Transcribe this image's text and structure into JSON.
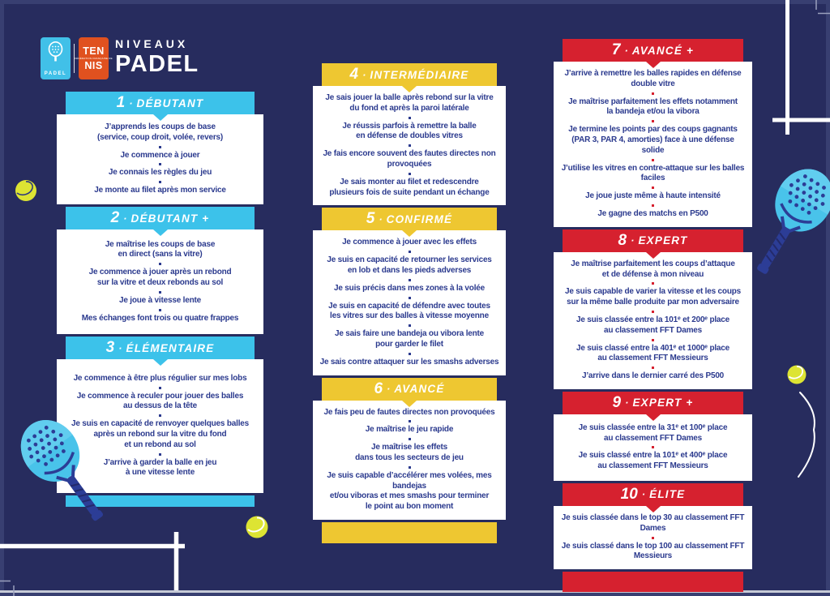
{
  "brand": {
    "padel_logo_label": "PADEL",
    "tennis_logo": {
      "top": "TEN",
      "middle": "FÉDÉRATION FRANÇAISE DE",
      "bottom": "NIS"
    },
    "title_line1": "NIVEAUX",
    "title_line2": "PADEL"
  },
  "level_separator": "·",
  "colors": {
    "background": "#272c5e",
    "cyan": "#3cc2ea",
    "yellow": "#eec731",
    "red": "#d6212f",
    "body_text": "#2b3a8e",
    "ball_yellow": "#dde433",
    "racket_blue": "#49c3ea",
    "court_line_white": "#ffffff"
  },
  "columns": [
    {
      "accent": "#3cc2ea",
      "separator_dot_color": "#2b3a8e",
      "cards": [
        {
          "number": "1",
          "name": "DÉBUTANT",
          "items": [
            "J’apprends les coups de base\n(service, coup droit, volée, revers)",
            "Je commence à jouer",
            "Je connais les règles du jeu",
            "Je monte au filet après mon service"
          ]
        },
        {
          "number": "2",
          "name": "DÉBUTANT +",
          "items": [
            "Je maîtrise les coups de base\nen direct (sans la vitre)",
            "Je commence à jouer après un rebond\nsur la vitre et deux rebonds au sol",
            "Je joue à vitesse lente",
            "Mes échanges font trois ou quatre frappes"
          ]
        },
        {
          "number": "3",
          "name": "ÉLÉMENTAIRE",
          "items": [
            "Je commence à être plus régulier sur mes lobs",
            "Je commence à reculer pour jouer des balles\nau dessus de la tête",
            "Je suis en capacité de renvoyer quelques balles\naprès un rebond sur la vitre du fond\net un rebond au sol",
            "J’arrive à garder la balle en jeu\nà une vitesse lente"
          ]
        }
      ]
    },
    {
      "accent": "#eec731",
      "separator_dot_color": "#2b3a8e",
      "cards": [
        {
          "number": "4",
          "name": "INTERMÉDIAIRE",
          "items": [
            "Je sais jouer la balle après rebond sur la vitre\ndu fond et après la paroi latérale",
            "Je réussis parfois à remettre la balle\nen défense de doubles vitres",
            "Je fais encore souvent des fautes directes non provoquées",
            "Je sais monter au filet et redescendre\nplusieurs fois de suite pendant un échange"
          ]
        },
        {
          "number": "5",
          "name": "CONFIRMÉ",
          "items": [
            "Je commence à jouer avec les effets",
            "Je suis en capacité de retourner les services\nen lob et dans les pieds adverses",
            "Je suis précis dans mes zones à la volée",
            "Je suis en capacité de défendre avec toutes\nles vitres sur des balles à vitesse moyenne",
            "Je sais faire une bandeja ou vibora lente\npour garder le filet",
            "Je sais contre attaquer sur les smashs adverses"
          ]
        },
        {
          "number": "6",
          "name": "AVANCÉ",
          "items": [
            "Je fais peu de fautes directes non provoquées",
            "Je maîtrise le jeu rapide",
            "Je maîtrise les effets\ndans tous les secteurs de jeu",
            "Je suis capable d’accélérer mes volées, mes bandejas\net/ou viboras et mes smashs pour terminer\nle point au bon moment"
          ]
        }
      ]
    },
    {
      "accent": "#d6212f",
      "separator_dot_color": "#d6212f",
      "cards": [
        {
          "number": "7",
          "name": "AVANCÉ +",
          "items": [
            "J’arrive à remettre les balles rapides en défense double vitre",
            "Je maîtrise parfaitement les effets notamment\nla bandeja et/ou la vibora",
            "Je termine les points par des coups gagnants\n(PAR 3, PAR 4, amorties) face à une défense solide",
            "J’utilise les vitres en contre-attaque sur les balles faciles",
            "Je joue juste même à haute intensité",
            "Je gagne des matchs en P500"
          ]
        },
        {
          "number": "8",
          "name": "EXPERT",
          "items": [
            "Je maîtrise parfaitement les coups d’attaque\net de défense à mon niveau",
            "Je suis capable de varier la vitesse et les coups\nsur la même balle produite par mon adversaire",
            "Je suis classée entre la 101ᵉ et 200ᵉ place\nau classement FFT Dames",
            "Je suis classé entre la 401ᵉ et 1000ᵉ place\nau classement FFT Messieurs",
            "J’arrive dans le dernier carré des P500"
          ]
        },
        {
          "number": "9",
          "name": "EXPERT +",
          "items": [
            "Je suis classée entre la 31ᵉ et 100ᵉ place\nau classement FFT Dames",
            "Je suis classé entre la 101ᵉ et 400ᵉ place\nau classement FFT Messieurs"
          ]
        },
        {
          "number": "10",
          "name": "ÉLITE",
          "items": [
            "Je suis classée dans le top 30 au classement FFT Dames",
            "Je suis classé dans le top 100 au classement FFT\nMessieurs"
          ]
        }
      ]
    }
  ]
}
